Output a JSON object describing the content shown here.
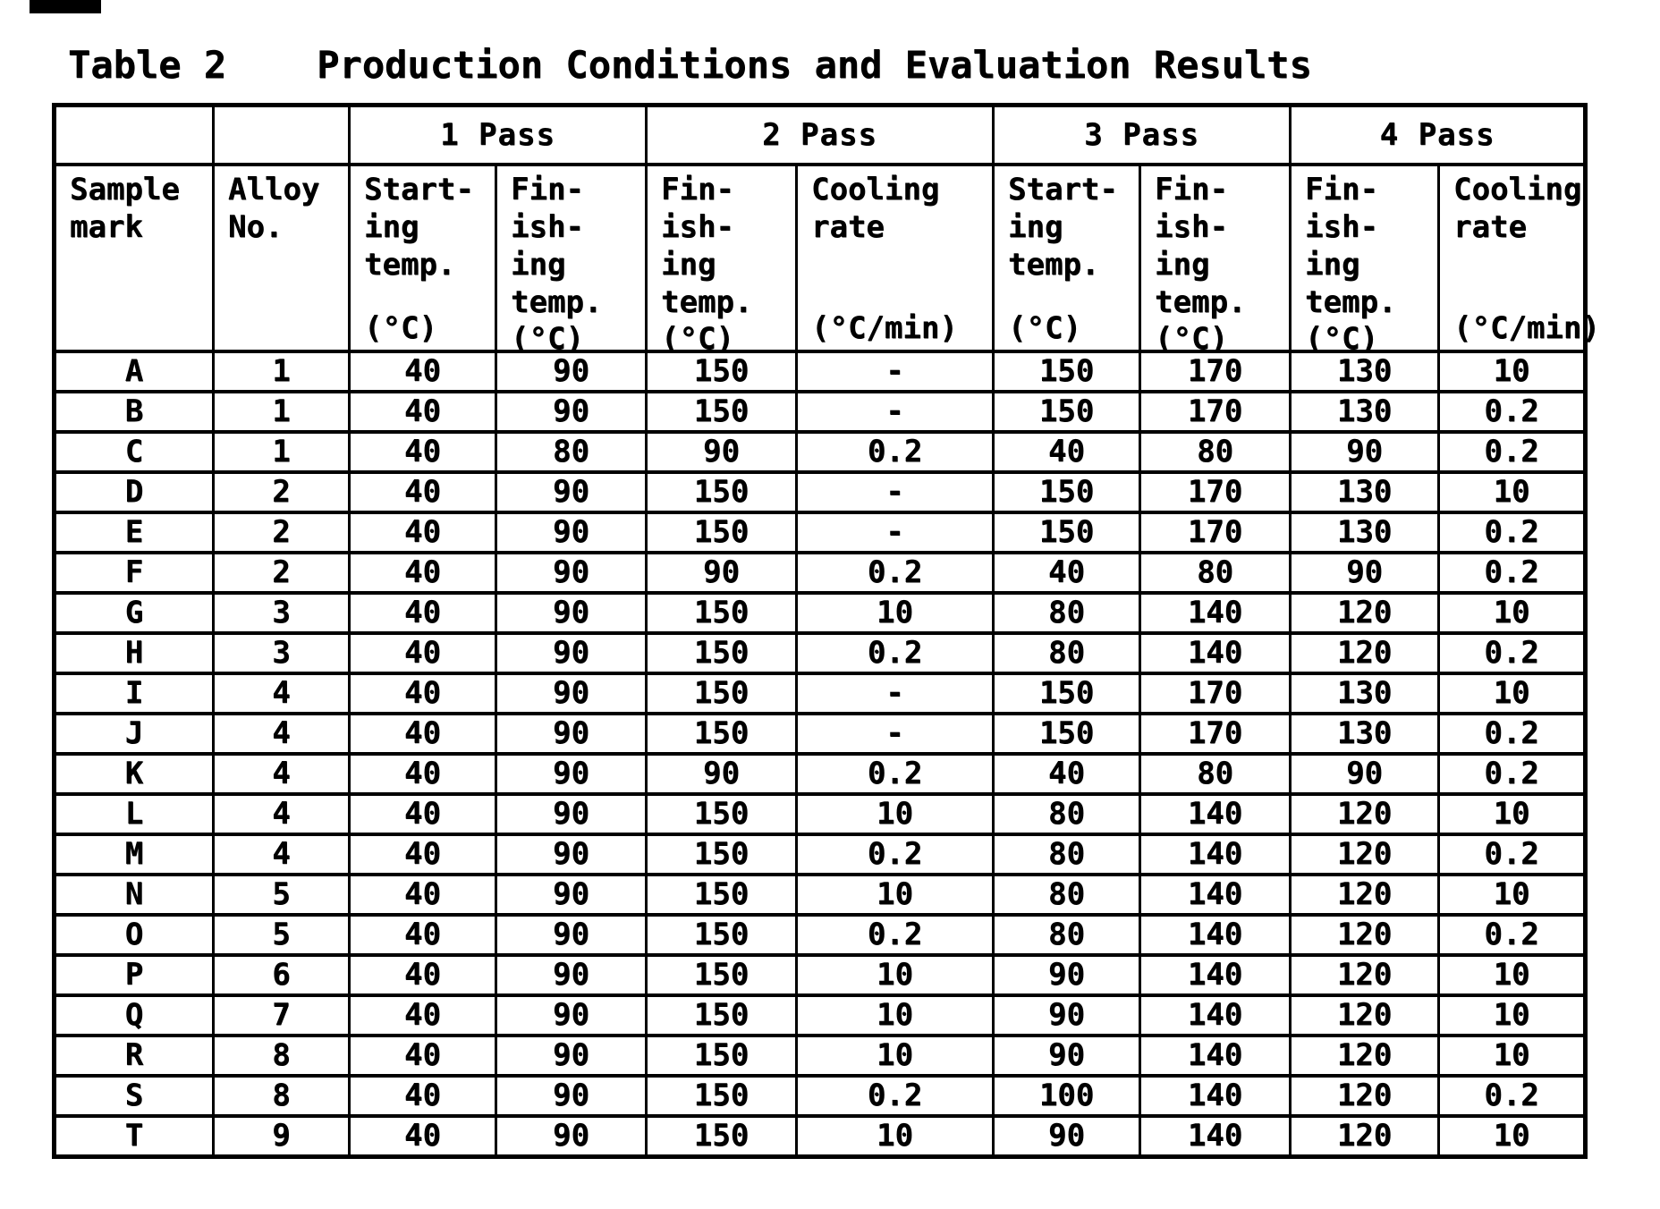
{
  "title": "Table 2    Production Conditions and Evaluation Results",
  "table": {
    "pass_groups": [
      "1 Pass",
      "2 Pass",
      "3 Pass",
      "4 Pass"
    ],
    "columns": [
      {
        "lines": [
          "Sample",
          "mark"
        ],
        "unit": ""
      },
      {
        "lines": [
          "Alloy",
          "No."
        ],
        "unit": ""
      },
      {
        "lines": [
          "Start-",
          "ing",
          "temp."
        ],
        "unit": "(°C)"
      },
      {
        "lines": [
          "Fin-",
          "ish-",
          "ing",
          "temp."
        ],
        "unit": "(°C)"
      },
      {
        "lines": [
          "Fin-",
          "ish-",
          "ing",
          "temp."
        ],
        "unit": "(°C)"
      },
      {
        "lines": [
          "Cooling",
          "rate"
        ],
        "unit": "(°C/min)"
      },
      {
        "lines": [
          "Start-",
          "ing",
          "temp."
        ],
        "unit": "(°C)"
      },
      {
        "lines": [
          "Fin-",
          "ish-",
          "ing",
          "temp."
        ],
        "unit": "(°C)"
      },
      {
        "lines": [
          "Fin-",
          "ish-",
          "ing",
          "temp."
        ],
        "unit": "(°C)"
      },
      {
        "lines": [
          "Cooling",
          "rate"
        ],
        "unit": "(°C/min)"
      }
    ],
    "rows": [
      [
        "A",
        "1",
        "40",
        "90",
        "150",
        "-",
        "150",
        "170",
        "130",
        "10"
      ],
      [
        "B",
        "1",
        "40",
        "90",
        "150",
        "-",
        "150",
        "170",
        "130",
        "0.2"
      ],
      [
        "C",
        "1",
        "40",
        "80",
        "90",
        "0.2",
        "40",
        "80",
        "90",
        "0.2"
      ],
      [
        "D",
        "2",
        "40",
        "90",
        "150",
        "-",
        "150",
        "170",
        "130",
        "10"
      ],
      [
        "E",
        "2",
        "40",
        "90",
        "150",
        "-",
        "150",
        "170",
        "130",
        "0.2"
      ],
      [
        "F",
        "2",
        "40",
        "90",
        "90",
        "0.2",
        "40",
        "80",
        "90",
        "0.2"
      ],
      [
        "G",
        "3",
        "40",
        "90",
        "150",
        "10",
        "80",
        "140",
        "120",
        "10"
      ],
      [
        "H",
        "3",
        "40",
        "90",
        "150",
        "0.2",
        "80",
        "140",
        "120",
        "0.2"
      ],
      [
        "I",
        "4",
        "40",
        "90",
        "150",
        "-",
        "150",
        "170",
        "130",
        "10"
      ],
      [
        "J",
        "4",
        "40",
        "90",
        "150",
        "-",
        "150",
        "170",
        "130",
        "0.2"
      ],
      [
        "K",
        "4",
        "40",
        "90",
        "90",
        "0.2",
        "40",
        "80",
        "90",
        "0.2"
      ],
      [
        "L",
        "4",
        "40",
        "90",
        "150",
        "10",
        "80",
        "140",
        "120",
        "10"
      ],
      [
        "M",
        "4",
        "40",
        "90",
        "150",
        "0.2",
        "80",
        "140",
        "120",
        "0.2"
      ],
      [
        "N",
        "5",
        "40",
        "90",
        "150",
        "10",
        "80",
        "140",
        "120",
        "10"
      ],
      [
        "O",
        "5",
        "40",
        "90",
        "150",
        "0.2",
        "80",
        "140",
        "120",
        "0.2"
      ],
      [
        "P",
        "6",
        "40",
        "90",
        "150",
        "10",
        "90",
        "140",
        "120",
        "10"
      ],
      [
        "Q",
        "7",
        "40",
        "90",
        "150",
        "10",
        "90",
        "140",
        "120",
        "10"
      ],
      [
        "R",
        "8",
        "40",
        "90",
        "150",
        "10",
        "90",
        "140",
        "120",
        "10"
      ],
      [
        "S",
        "8",
        "40",
        "90",
        "150",
        "0.2",
        "100",
        "140",
        "120",
        "0.2"
      ],
      [
        "T",
        "9",
        "40",
        "90",
        "150",
        "10",
        "90",
        "140",
        "120",
        "10"
      ]
    ]
  }
}
